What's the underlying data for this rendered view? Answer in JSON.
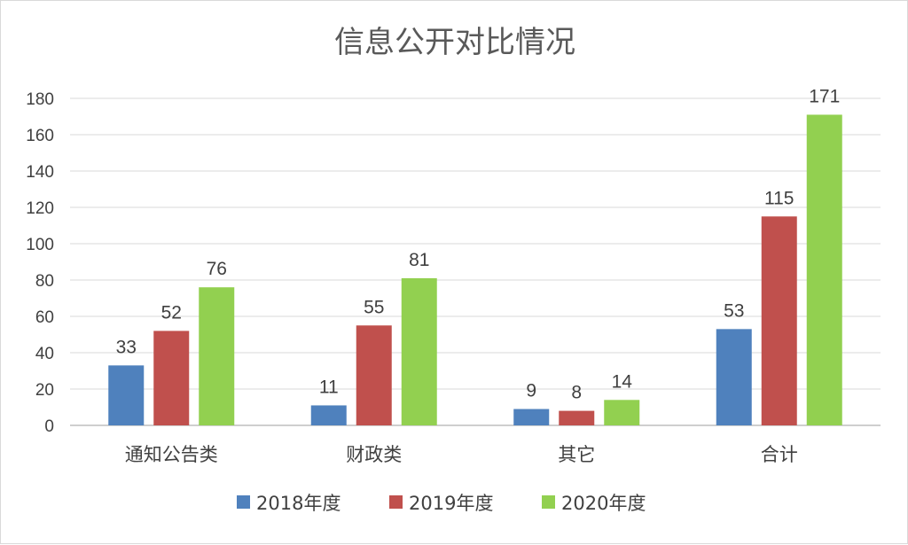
{
  "chart_data": {
    "type": "bar",
    "title": "信息公开对比情况",
    "categories": [
      "通知公告类",
      "财政类",
      "其它",
      "合计"
    ],
    "series": [
      {
        "name": "2018年度",
        "color": "#4f81bd",
        "values": [
          33,
          11,
          9,
          53
        ]
      },
      {
        "name": "2019年度",
        "color": "#c0504d",
        "values": [
          52,
          55,
          8,
          115
        ]
      },
      {
        "name": "2020年度",
        "color": "#92d050",
        "values": [
          76,
          81,
          14,
          171
        ]
      }
    ],
    "ylim": [
      0,
      180
    ],
    "yticks": [
      0,
      20,
      40,
      60,
      80,
      100,
      120,
      140,
      160,
      180
    ],
    "grid": true,
    "legend": "bottom"
  }
}
